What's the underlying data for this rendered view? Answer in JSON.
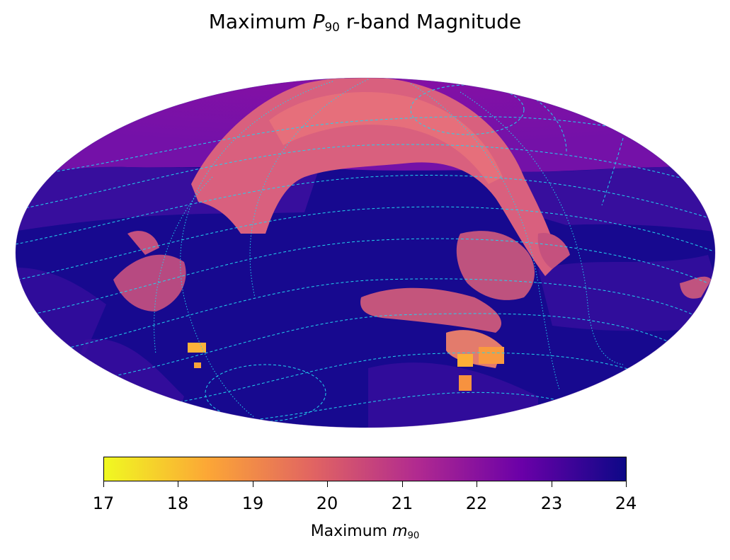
{
  "title": {
    "prefix": "Maximum ",
    "sym": "P",
    "sub": "90",
    "suffix": " r-band Magnitude"
  },
  "map": {
    "projection": "mollweide",
    "grid_color": "#22d3ee",
    "background_color": "#17098f",
    "high_latitude_color": "#7b12a5",
    "mid_color": "#3a0ea0",
    "bright_region_color": "#e06a78",
    "brightest_color": "#fbb23a"
  },
  "colorbar": {
    "colormap": "plasma_r",
    "min": 17,
    "max": 24,
    "ticks": [
      "17",
      "18",
      "19",
      "20",
      "21",
      "22",
      "23",
      "24"
    ],
    "label": {
      "prefix": "Maximum ",
      "sym": "m",
      "sub": "90"
    },
    "stops": [
      "#f0f921",
      "#fca636",
      "#e16462",
      "#b12a90",
      "#6a00a8",
      "#0d0887"
    ]
  }
}
